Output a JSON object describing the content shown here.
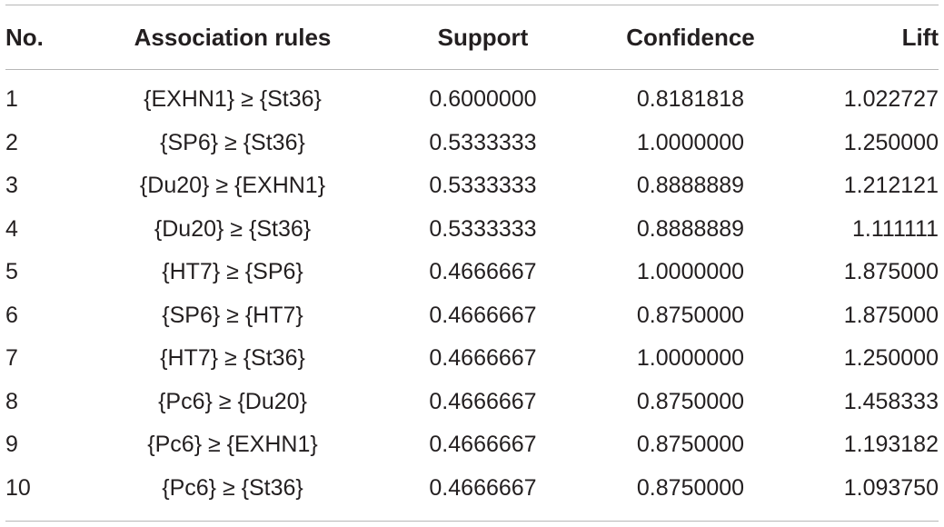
{
  "table": {
    "headers": {
      "no": "No.",
      "rules": "Association rules",
      "support": "Support",
      "confidence": "Confidence",
      "lift": "Lift"
    },
    "rows": [
      {
        "no": "1",
        "rule": "{EXHN1} ≥ {St36}",
        "support": "0.6000000",
        "confidence": "0.8181818",
        "lift": "1.022727"
      },
      {
        "no": "2",
        "rule": "{SP6} ≥ {St36}",
        "support": "0.5333333",
        "confidence": "1.0000000",
        "lift": "1.250000"
      },
      {
        "no": "3",
        "rule": "{Du20} ≥ {EXHN1}",
        "support": "0.5333333",
        "confidence": "0.8888889",
        "lift": "1.212121"
      },
      {
        "no": "4",
        "rule": "{Du20} ≥ {St36}",
        "support": "0.5333333",
        "confidence": "0.8888889",
        "lift": "1.111111"
      },
      {
        "no": "5",
        "rule": "{HT7} ≥ {SP6}",
        "support": "0.4666667",
        "confidence": "1.0000000",
        "lift": "1.875000"
      },
      {
        "no": "6",
        "rule": "{SP6} ≥ {HT7}",
        "support": "0.4666667",
        "confidence": "0.8750000",
        "lift": "1.875000"
      },
      {
        "no": "7",
        "rule": "{HT7} ≥ {St36}",
        "support": "0.4666667",
        "confidence": "1.0000000",
        "lift": "1.250000"
      },
      {
        "no": "8",
        "rule": "{Pc6} ≥ {Du20}",
        "support": "0.4666667",
        "confidence": "0.8750000",
        "lift": "1.458333"
      },
      {
        "no": "9",
        "rule": "{Pc6} ≥ {EXHN1}",
        "support": "0.4666667",
        "confidence": "0.8750000",
        "lift": "1.193182"
      },
      {
        "no": "10",
        "rule": "{Pc6} ≥ {St36}",
        "support": "0.4666667",
        "confidence": "0.8750000",
        "lift": "1.093750"
      }
    ]
  }
}
